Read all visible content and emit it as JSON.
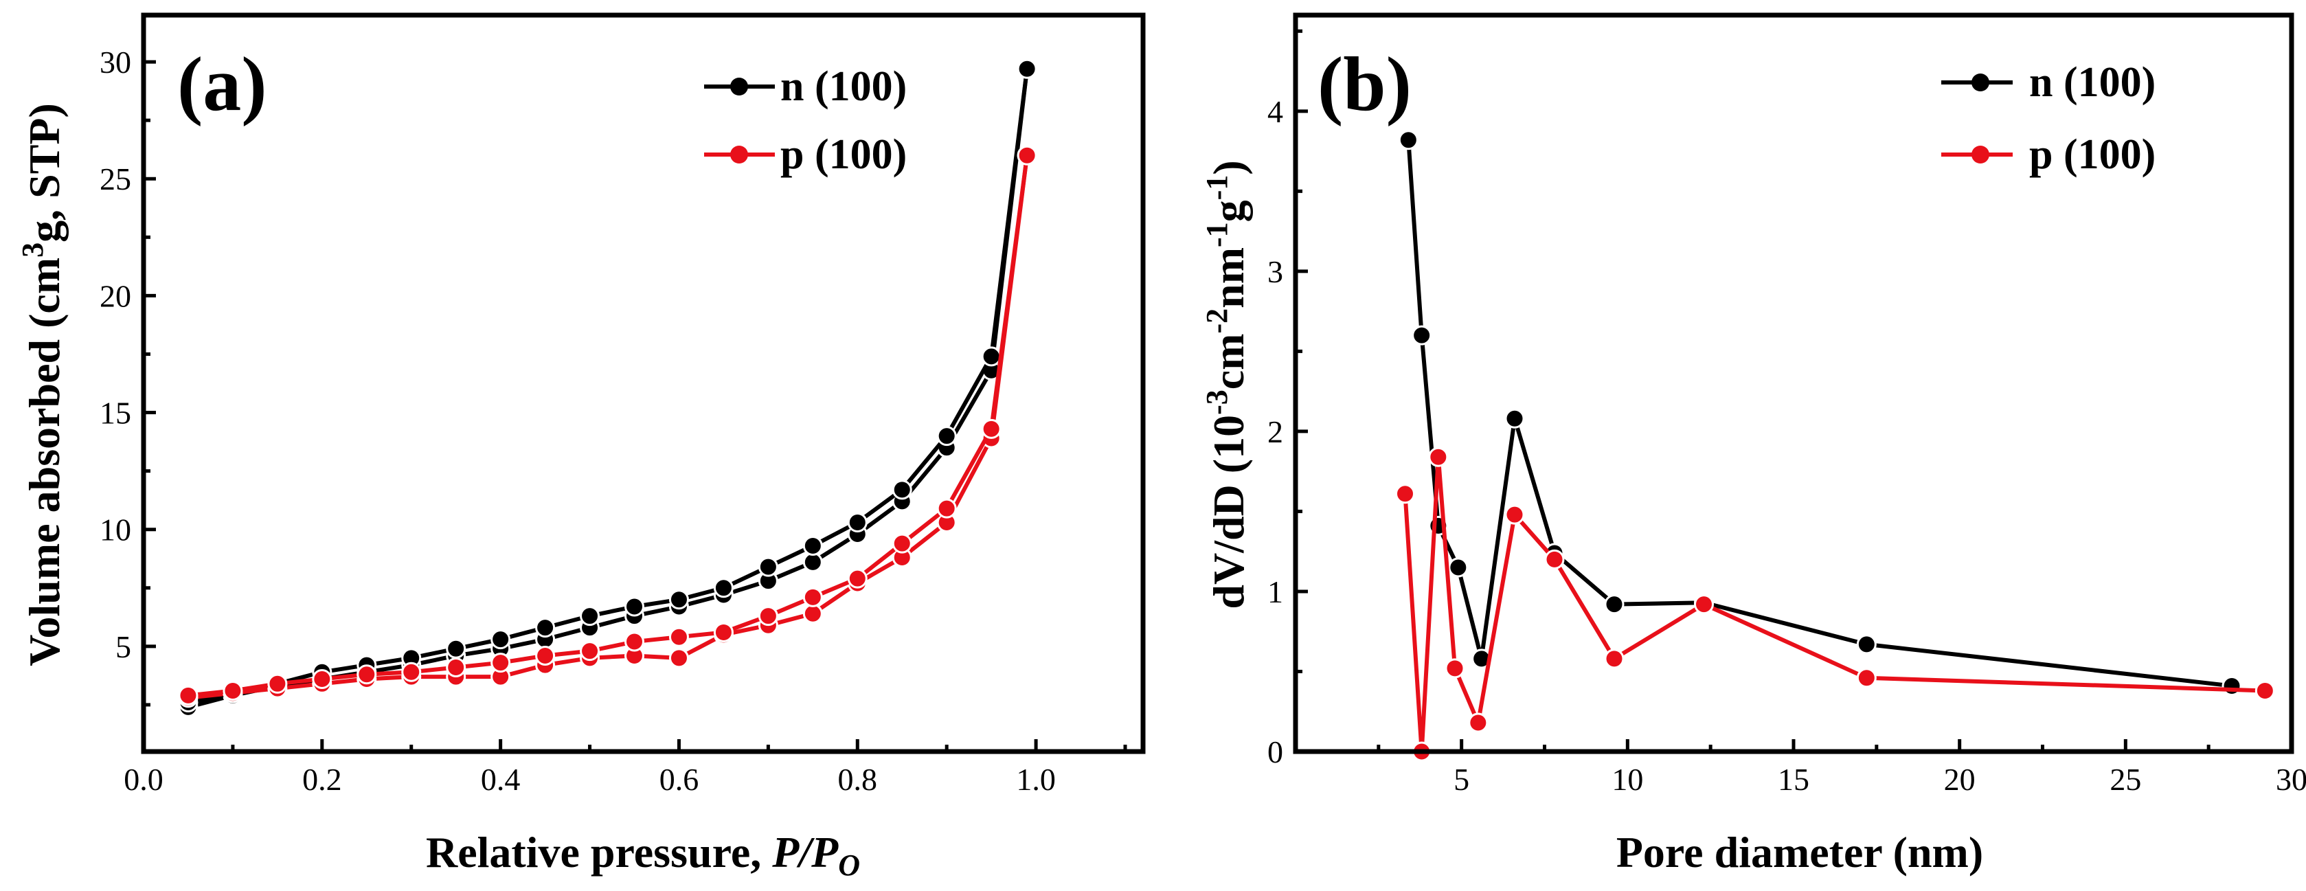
{
  "chart_data": [
    {
      "type": "line",
      "panel_label": "(a)",
      "xlabel_prefix": "Relative pressure, ",
      "xlabel_italic": "P/P",
      "xlabel_sub": "O",
      "ylabel": "Volume absorbed (cm",
      "ylabel_sup": "3",
      "ylabel_suffix": "g, STP)",
      "xlim": [
        0.0,
        1.12
      ],
      "ylim": [
        0.5,
        32
      ],
      "xticks": [
        "0.0",
        "0.2",
        "0.4",
        "0.6",
        "0.8",
        "1.0"
      ],
      "xtick_values": [
        0.0,
        0.2,
        0.4,
        0.6,
        0.8,
        1.0
      ],
      "yticks": [
        "5",
        "10",
        "15",
        "20",
        "25",
        "30"
      ],
      "ytick_values": [
        5,
        10,
        15,
        20,
        25,
        30
      ],
      "legend_position": "top-right",
      "series": [
        {
          "name": "n (100)",
          "color": "#000000",
          "branches": [
            {
              "x": [
                0.05,
                0.1,
                0.15,
                0.2,
                0.25,
                0.3,
                0.35,
                0.4,
                0.45,
                0.5,
                0.55,
                0.6,
                0.65,
                0.7,
                0.75,
                0.8,
                0.85,
                0.9,
                0.95,
                0.99
              ],
              "y": [
                2.4,
                2.9,
                3.3,
                3.6,
                3.9,
                4.2,
                4.6,
                4.9,
                5.3,
                5.8,
                6.3,
                6.7,
                7.2,
                7.8,
                8.6,
                9.8,
                11.2,
                13.5,
                16.8,
                29.7
              ]
            },
            {
              "x": [
                0.99,
                0.95,
                0.9,
                0.85,
                0.8,
                0.75,
                0.7,
                0.65,
                0.6,
                0.55,
                0.5,
                0.45,
                0.4,
                0.35,
                0.3,
                0.25,
                0.2,
                0.15,
                0.1,
                0.05
              ],
              "y": [
                29.7,
                17.4,
                14.0,
                11.7,
                10.3,
                9.3,
                8.4,
                7.5,
                7.0,
                6.7,
                6.3,
                5.8,
                5.3,
                4.9,
                4.5,
                4.2,
                3.9,
                3.4,
                3.0,
                2.6
              ]
            }
          ]
        },
        {
          "name": "p (100)",
          "color": "#e8101a",
          "branches": [
            {
              "x": [
                0.05,
                0.1,
                0.15,
                0.2,
                0.25,
                0.3,
                0.35,
                0.4,
                0.45,
                0.5,
                0.55,
                0.6,
                0.65,
                0.7,
                0.75,
                0.8,
                0.85,
                0.9,
                0.95,
                0.99
              ],
              "y": [
                2.8,
                3.0,
                3.2,
                3.4,
                3.6,
                3.7,
                3.7,
                3.7,
                4.2,
                4.5,
                4.6,
                4.5,
                5.5,
                5.9,
                6.4,
                7.7,
                8.8,
                10.3,
                13.9,
                26.0
              ]
            },
            {
              "x": [
                0.99,
                0.95,
                0.9,
                0.85,
                0.8,
                0.75,
                0.7,
                0.65,
                0.6,
                0.55,
                0.5,
                0.45,
                0.4,
                0.35,
                0.3,
                0.25,
                0.2,
                0.15,
                0.1,
                0.05
              ],
              "y": [
                26.0,
                14.3,
                10.9,
                9.4,
                7.9,
                7.1,
                6.3,
                5.6,
                5.4,
                5.2,
                4.8,
                4.6,
                4.3,
                4.1,
                3.9,
                3.8,
                3.6,
                3.4,
                3.1,
                2.9
              ]
            }
          ]
        }
      ]
    },
    {
      "type": "line",
      "panel_label": "(b)",
      "xlabel": "Pore diameter (nm)",
      "ylabel_parts": [
        "dV/dD (10",
        "-3",
        "cm",
        "-2",
        "nm",
        "-1",
        "g",
        "-1",
        ")"
      ],
      "xlim": [
        0,
        30
      ],
      "ylim": [
        0,
        4.6
      ],
      "xticks": [
        "5",
        "10",
        "15",
        "20",
        "25",
        "30"
      ],
      "xtick_values": [
        5,
        10,
        15,
        20,
        25,
        30
      ],
      "yticks": [
        "0",
        "1",
        "2",
        "3",
        "4"
      ],
      "ytick_values": [
        0,
        1,
        2,
        3,
        4
      ],
      "legend_position": "top-right",
      "series": [
        {
          "name": "n (100)",
          "color": "#000000",
          "x": [
            3.4,
            3.8,
            4.3,
            4.9,
            5.6,
            6.6,
            7.8,
            9.6,
            12.3,
            17.2,
            28.2
          ],
          "y": [
            3.82,
            2.6,
            1.41,
            1.15,
            0.58,
            2.08,
            1.24,
            0.92,
            0.93,
            0.67,
            0.41
          ]
        },
        {
          "name": "p (100)",
          "color": "#e8101a",
          "x": [
            3.3,
            3.8,
            4.3,
            4.8,
            5.5,
            6.6,
            7.8,
            9.6,
            12.3,
            17.2,
            29.2
          ],
          "y": [
            1.61,
            0.0,
            1.84,
            0.52,
            0.18,
            1.48,
            1.2,
            0.58,
            0.92,
            0.46,
            0.38
          ]
        }
      ]
    }
  ]
}
